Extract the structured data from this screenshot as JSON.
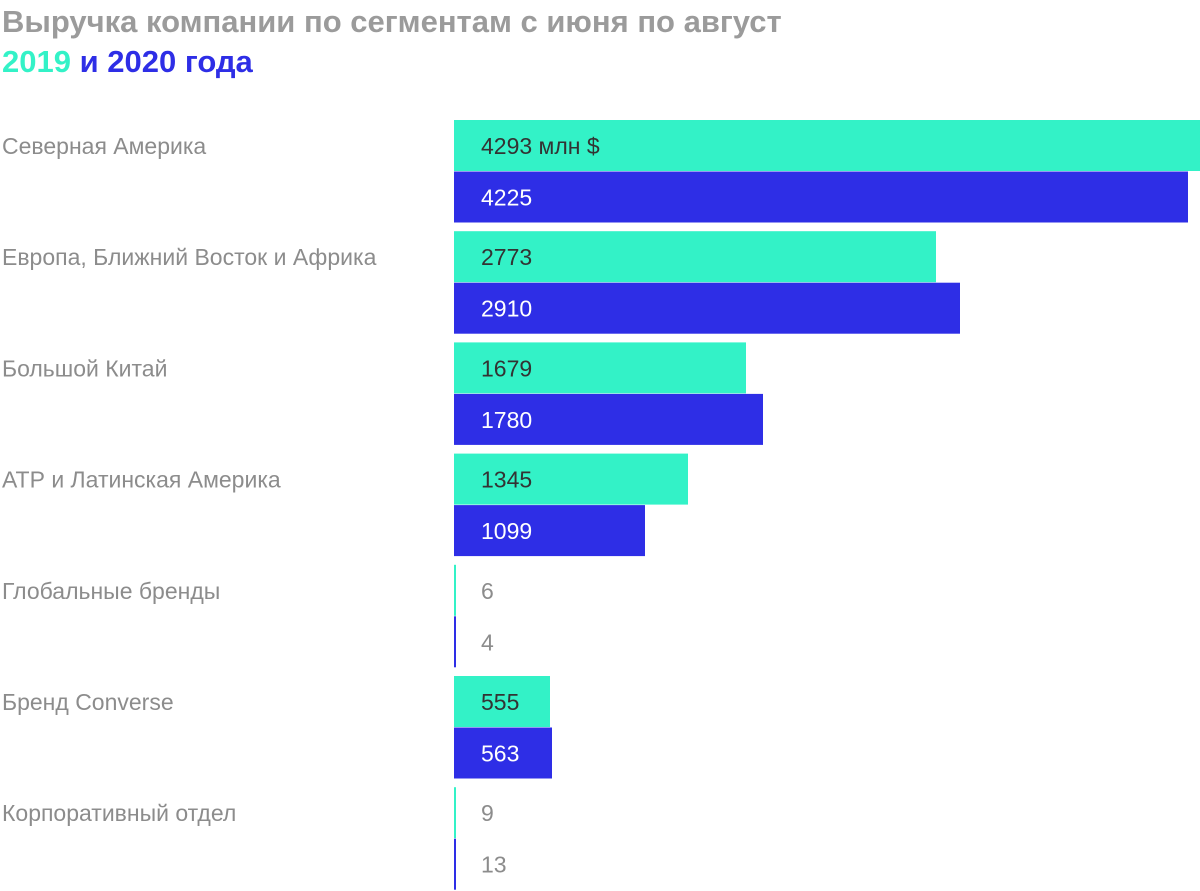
{
  "title": {
    "line1": "Выручка компании по сегментам с июня по август",
    "year1": "2019",
    "conj": " и ",
    "year2": "2020 года"
  },
  "chart_data": {
    "type": "bar",
    "orientation": "horizontal",
    "categories": [
      "Северная Америка",
      "Европа, Ближний Восток и Африка",
      "Большой Китай",
      "АТР и Латинская Америка",
      "Глобальные бренды",
      "Бренд Converse",
      "Корпоративный отдел"
    ],
    "series": [
      {
        "name": "2019",
        "color": "#33f2c7",
        "values": [
          4293,
          2773,
          1679,
          1345,
          6,
          555,
          9
        ]
      },
      {
        "name": "2020",
        "color": "#2e2ee6",
        "values": [
          4225,
          2910,
          1780,
          1099,
          4,
          563,
          13
        ]
      }
    ],
    "value_labels": [
      [
        "4293 млн $",
        "2773",
        "1679",
        "1345",
        "6",
        "555",
        "9"
      ],
      [
        "4225",
        "2910",
        "1780",
        "1099",
        "4",
        "563",
        "13"
      ]
    ],
    "xlim": [
      0,
      4293
    ],
    "grid": false,
    "legend": "title"
  },
  "colors": {
    "title_gray": "#9b9b9b",
    "label_gray": "#8c8c8c",
    "series_2019": "#33f2c7",
    "series_2020": "#2e2ee6",
    "inner_text_2019": "#333333",
    "inner_text_2020": "#ffffff"
  }
}
